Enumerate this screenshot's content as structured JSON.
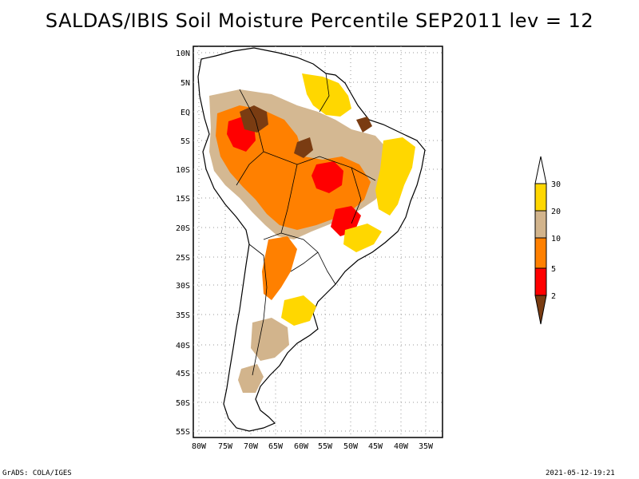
{
  "title": "SALDAS/IBIS Soil Moisture Percentile SEP2011 lev = 12",
  "footer": {
    "left": "GrADS: COLA/IGES",
    "right": "2021-05-12-19:21"
  },
  "map": {
    "lat_labels": [
      "10N",
      "5N",
      "EQ",
      "5S",
      "10S",
      "15S",
      "20S",
      "25S",
      "30S",
      "35S",
      "40S",
      "45S",
      "50S",
      "55S"
    ],
    "lon_labels": [
      "80W",
      "75W",
      "70W",
      "65W",
      "60W",
      "55W",
      "50W",
      "45W",
      "40W",
      "35W"
    ],
    "lat_range": [
      -56,
      11
    ],
    "lon_range": [
      -81,
      -34
    ],
    "grid": true
  },
  "legend": {
    "levels": [
      "2",
      "5",
      "10",
      "20",
      "30"
    ],
    "colors": [
      "#7a3c12",
      "#ff0000",
      "#ff8000",
      "#d2b48c",
      "#ffd700",
      "#ffffff"
    ]
  }
}
